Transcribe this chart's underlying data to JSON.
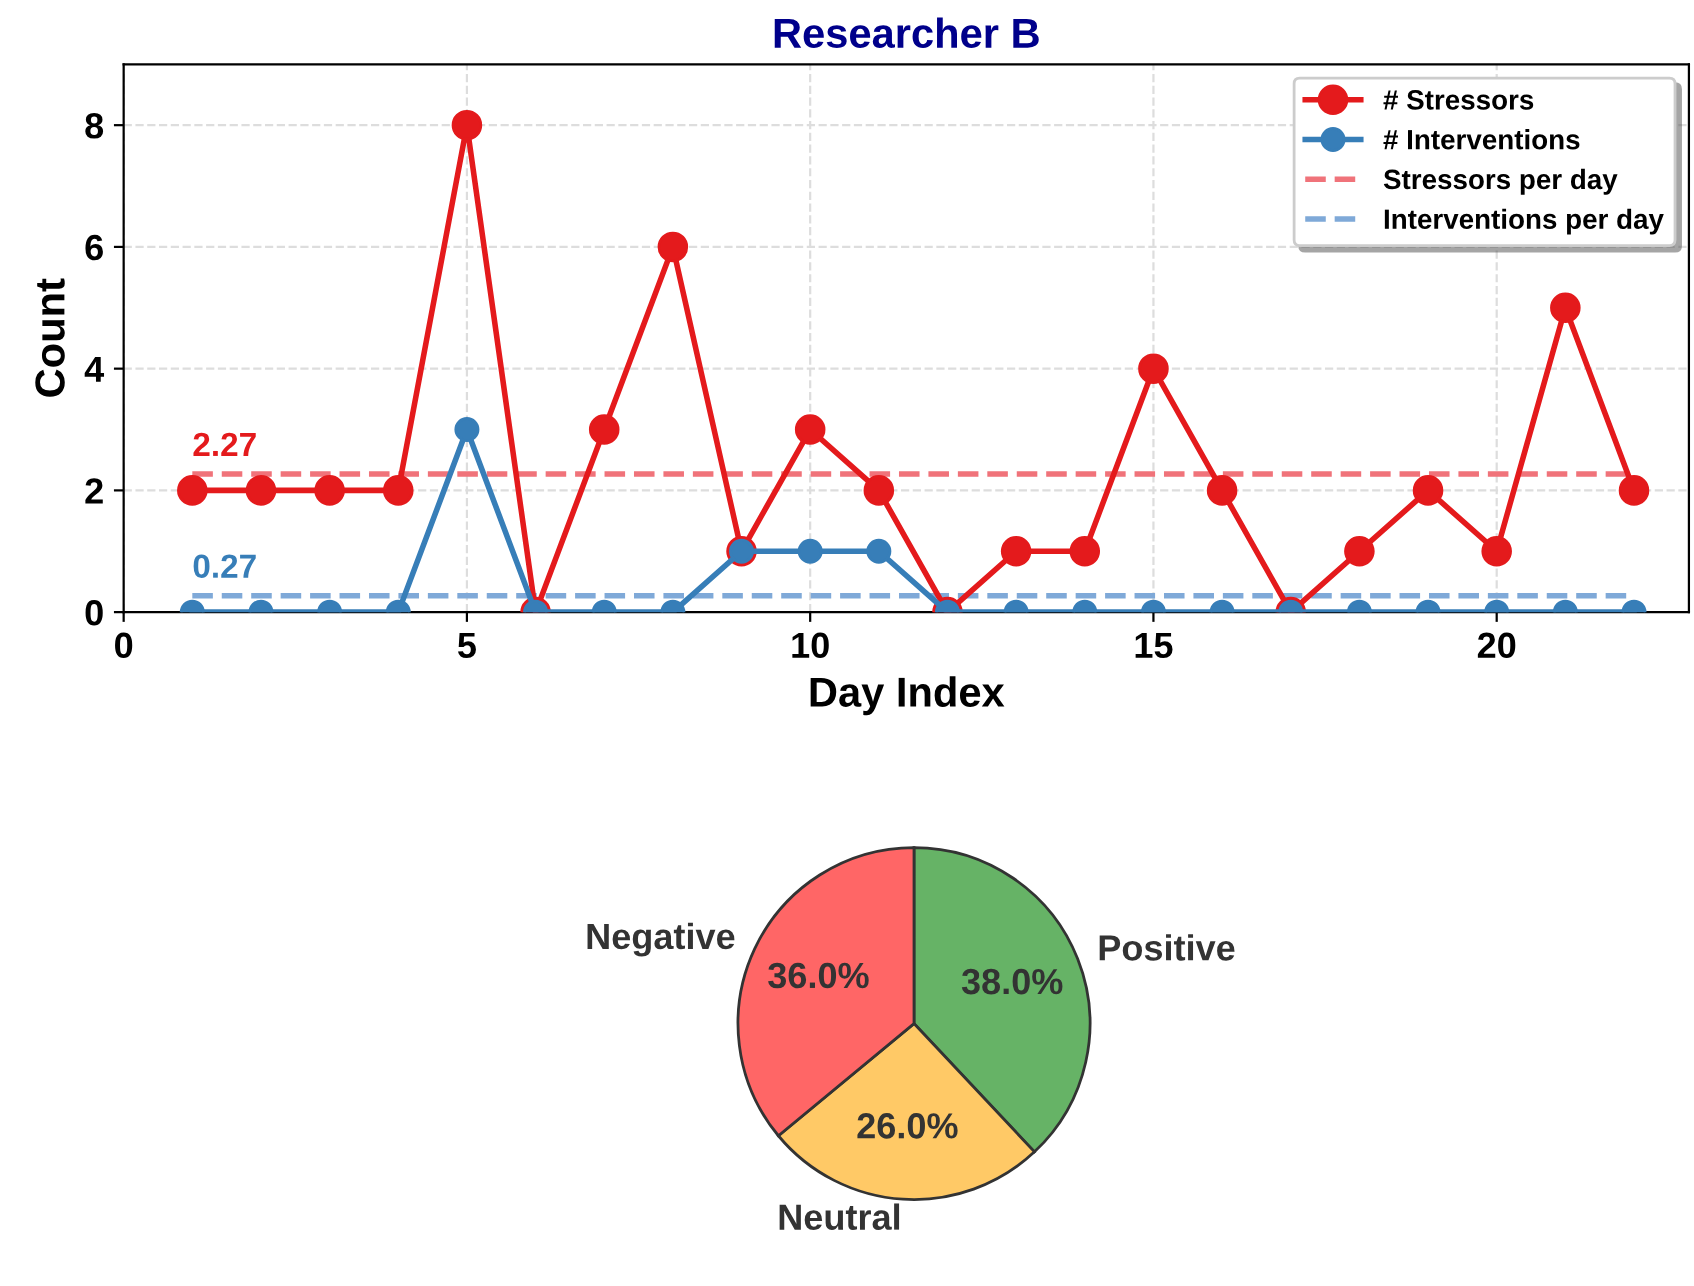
{
  "chart_data": [
    {
      "type": "line",
      "title": "Researcher B",
      "xlabel": "Day Index",
      "ylabel": "Count",
      "x": [
        1,
        2,
        3,
        4,
        5,
        6,
        7,
        8,
        9,
        10,
        11,
        12,
        13,
        14,
        15,
        16,
        17,
        18,
        19,
        20,
        21,
        22
      ],
      "series": [
        {
          "name": "# Stressors",
          "color": "#e41a1c",
          "values": [
            2,
            2,
            2,
            2,
            8,
            0,
            3,
            6,
            1,
            3,
            2,
            0,
            1,
            1,
            4,
            2,
            0,
            1,
            2,
            1,
            5,
            2
          ]
        },
        {
          "name": "# Interventions",
          "color": "#377eb8",
          "values": [
            0,
            0,
            0,
            0,
            3,
            0,
            0,
            0,
            1,
            1,
            1,
            0,
            0,
            0,
            0,
            0,
            0,
            0,
            0,
            0,
            0,
            0
          ]
        }
      ],
      "ref_lines": [
        {
          "axis": "y",
          "value": 2.27,
          "label": "Stressors per day",
          "color": "#f0737a",
          "line_style": "dashed"
        },
        {
          "axis": "y",
          "value": 0.27,
          "label": "Interventions per day",
          "color": "#7fa9d8",
          "line_style": "dashed"
        }
      ],
      "annotations": [
        {
          "text": "2.27",
          "x": 1,
          "y": 2.27
        },
        {
          "text": "0.27",
          "x": 1,
          "y": 0.27
        }
      ],
      "xlim": [
        0,
        22.8
      ],
      "ylim": [
        0,
        9
      ],
      "xticks": [
        0,
        5,
        10,
        15,
        20
      ],
      "yticks": [
        0,
        2,
        4,
        6,
        8
      ],
      "grid": true,
      "legend": "top right",
      "marker": "circle",
      "line_style": "solid"
    },
    {
      "type": "pie",
      "categories": [
        "Positive",
        "Neutral",
        "Negative"
      ],
      "values": [
        38,
        26,
        36
      ],
      "colors": [
        "#66b366",
        "#ffc966",
        "#ff6666"
      ],
      "value_labels": [
        "38.0%",
        "26.0%",
        "36.0%"
      ]
    }
  ]
}
